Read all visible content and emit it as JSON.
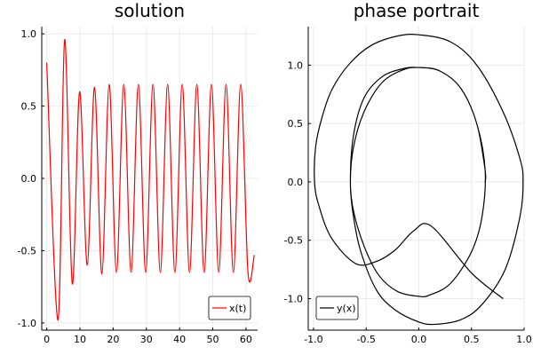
{
  "chart_data": [
    {
      "type": "line",
      "title": "solution",
      "xlabel": "",
      "ylabel": "",
      "xlim": [
        -1.5,
        63.5
      ],
      "ylim": [
        -1.05,
        1.05
      ],
      "xticks": [
        0,
        10,
        20,
        30,
        40,
        50,
        60
      ],
      "yticks": [
        -1.0,
        -0.5,
        0.0,
        0.5,
        1.0
      ],
      "xtick_labels": [
        "0",
        "10",
        "20",
        "30",
        "40",
        "50",
        "60"
      ],
      "ytick_labels": [
        "-1.0",
        "-0.5",
        "0.0",
        "0.5",
        "1.0"
      ],
      "grid": true,
      "legend_position": "bottom-right",
      "series": [
        {
          "name": "x(t)",
          "color": "#ff0000",
          "x": [
            0.0,
            3.4,
            5.4,
            7.7,
            9.9,
            12.2,
            14.4,
            16.6,
            18.8,
            21.0,
            23.2,
            25.4,
            27.6,
            29.8,
            32.0,
            34.2,
            36.4,
            38.6,
            40.8,
            43.0,
            45.2,
            47.4,
            49.6,
            51.8,
            54.0,
            56.2,
            58.4,
            60.6,
            62.5
          ],
          "y": [
            0.8,
            -0.98,
            0.96,
            -0.73,
            0.6,
            -0.6,
            0.63,
            -0.66,
            0.65,
            -0.65,
            0.65,
            -0.65,
            0.65,
            -0.65,
            0.65,
            -0.65,
            0.65,
            -0.65,
            0.65,
            -0.65,
            0.65,
            -0.65,
            0.65,
            -0.65,
            0.65,
            -0.65,
            0.65,
            -0.65,
            -0.53
          ]
        }
      ]
    },
    {
      "type": "line",
      "title": "phase portrait",
      "xlabel": "",
      "ylabel": "",
      "xlim": [
        -1.05,
        1.0
      ],
      "ylim": [
        -1.27,
        1.33
      ],
      "xticks": [
        -1.0,
        -0.5,
        0.0,
        0.5,
        1.0
      ],
      "yticks": [
        -1.0,
        -0.5,
        0.0,
        0.5,
        1.0
      ],
      "xtick_labels": [
        "-1.0",
        "-0.5",
        "0.0",
        "0.5",
        "1.0"
      ],
      "ytick_labels": [
        "-1.0",
        "-0.5",
        "0.0",
        "0.5",
        "1.0"
      ],
      "grid": true,
      "legend_position": "bottom-left",
      "series": [
        {
          "name": "y(x)",
          "color": "#000000",
          "x": [
            0.8,
            0.5,
            0.12,
            -0.05,
            -0.22,
            -0.4,
            -0.6,
            -0.83,
            -0.95,
            -0.99,
            -0.98,
            -0.92,
            -0.82,
            -0.65,
            -0.45,
            -0.2,
            0.0,
            0.3,
            0.55,
            0.8,
            0.96,
            0.99,
            0.96,
            0.82,
            0.6,
            0.4,
            0.15,
            0.0,
            -0.22,
            -0.4,
            -0.55,
            -0.62,
            -0.65,
            -0.62,
            -0.52,
            -0.35,
            -0.15,
            0.0,
            0.2,
            0.4,
            0.55,
            0.63,
            0.6,
            0.5,
            0.3,
            0.1,
            0.0,
            -0.2,
            -0.38,
            -0.52,
            -0.62,
            -0.65,
            -0.62,
            -0.52,
            -0.35,
            -0.15,
            0.0,
            0.2,
            0.4,
            0.55,
            0.63,
            0.63
          ],
          "y": [
            -1.0,
            -0.78,
            -0.38,
            -0.42,
            -0.58,
            -0.68,
            -0.7,
            -0.48,
            -0.2,
            0.0,
            0.3,
            0.55,
            0.8,
            1.02,
            1.17,
            1.25,
            1.26,
            1.2,
            1.0,
            0.6,
            0.2,
            0.0,
            -0.3,
            -0.75,
            -1.05,
            -1.18,
            -1.22,
            -1.2,
            -1.1,
            -0.93,
            -0.6,
            -0.3,
            0.0,
            0.4,
            0.72,
            0.9,
            0.97,
            0.98,
            0.95,
            0.8,
            0.5,
            0.1,
            -0.3,
            -0.6,
            -0.87,
            -0.97,
            -0.98,
            -0.94,
            -0.8,
            -0.55,
            -0.25,
            0.0,
            0.3,
            0.6,
            0.85,
            0.96,
            0.98,
            0.95,
            0.8,
            0.5,
            0.1,
            0.0
          ]
        }
      ]
    }
  ]
}
